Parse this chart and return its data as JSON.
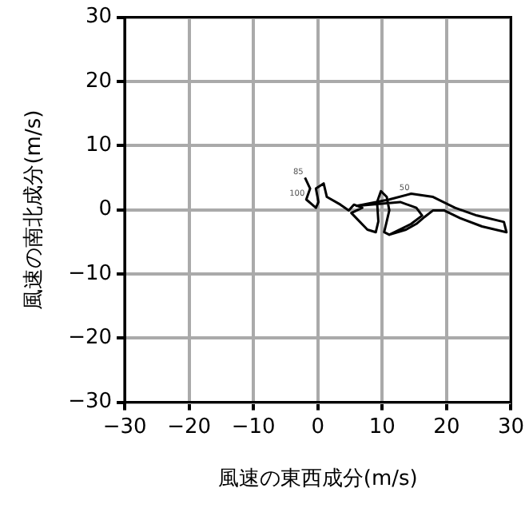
{
  "chart_data": {
    "type": "line",
    "xlabel": "風速の東西成分(m/s)",
    "ylabel": "風速の南北成分(m/s)",
    "xlim": [
      -30,
      30
    ],
    "ylim": [
      -30,
      30
    ],
    "xticks": [
      -30,
      -20,
      -10,
      0,
      10,
      20,
      30
    ],
    "yticks": [
      -30,
      -20,
      -10,
      0,
      10,
      20,
      30
    ],
    "grid": true,
    "legend": false,
    "marker": "none",
    "line_style": "solid",
    "annotations": [
      {
        "text": "85",
        "x": -2.0,
        "y": 5.0
      },
      {
        "text": "100",
        "x": -1.8,
        "y": 1.6
      },
      {
        "text": "50",
        "x": 14.5,
        "y": 2.5
      }
    ],
    "series": [
      {
        "color": "#000000",
        "x": [
          -2.0,
          -1.2,
          -1.8,
          -0.3,
          0.1,
          -0.3,
          0.9,
          1.4,
          3.5,
          4.8,
          5.6,
          6.9,
          5.2,
          7.7,
          9.0,
          9.4,
          9.2,
          9.8,
          10.7,
          11.1,
          10.7,
          10.3,
          11.1,
          14.5,
          16.2,
          15.3,
          12.8,
          6.0,
          11.1,
          14.5,
          17.9,
          21.3,
          24.7,
          28.9,
          29.3,
          25.5,
          22.1,
          19.6,
          17.9,
          16.6,
          15.3,
          13.7,
          11.1
        ],
        "values": [
          5.0,
          3.3,
          1.6,
          0.3,
          1.2,
          3.3,
          4.1,
          2.0,
          0.8,
          -0.1,
          0.8,
          0.3,
          -0.5,
          -3.1,
          -3.5,
          -1.8,
          1.2,
          2.9,
          2.0,
          -0.1,
          -1.8,
          -3.5,
          -3.9,
          -2.2,
          -0.9,
          0.3,
          1.2,
          0.6,
          1.6,
          2.5,
          2.0,
          0.3,
          -0.9,
          -1.9,
          -3.5,
          -2.6,
          -1.3,
          -0.1,
          -0.1,
          -1.1,
          -2.2,
          -3.1,
          -3.9
        ]
      }
    ]
  }
}
